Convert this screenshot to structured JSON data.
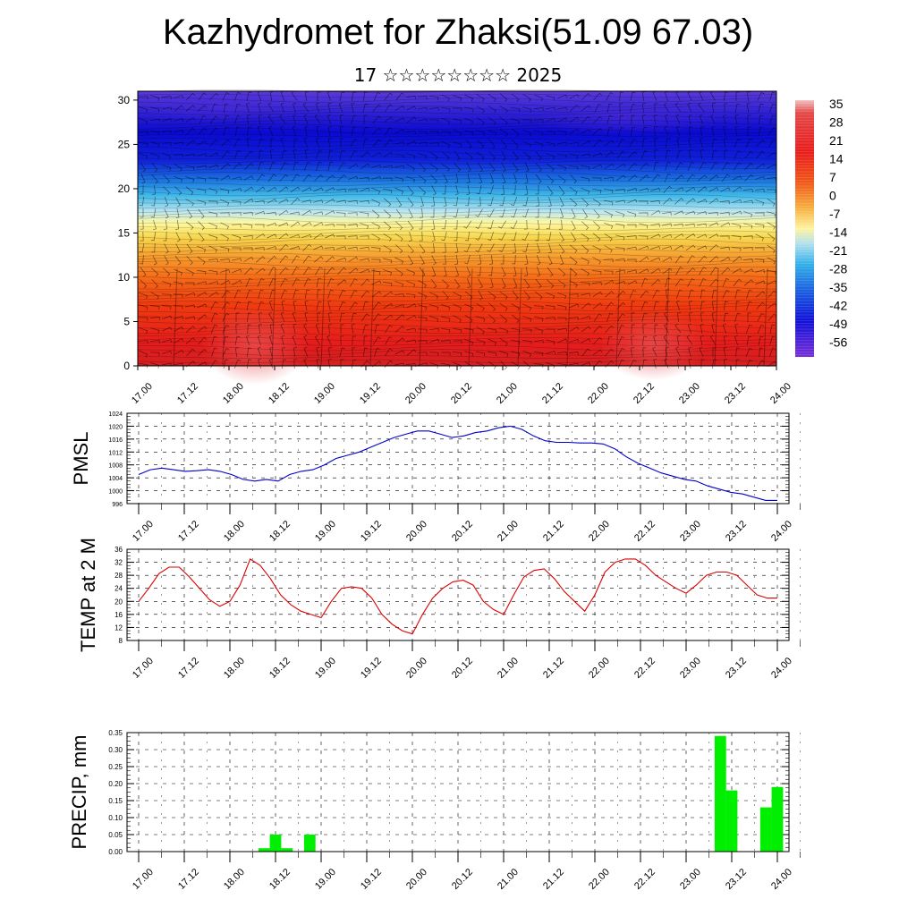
{
  "header": {
    "title": "Kazhydromet for Zhaksi(51.09 67.03)",
    "subtitle": "17 ☆☆☆☆☆☆☆☆ 2025"
  },
  "colors": {
    "pmsl_line": "#0000cc",
    "temp_line": "#dd0000",
    "precip_bar": "#00ee00"
  },
  "chart_data": [
    {
      "type": "heatmap",
      "title": "",
      "xlabel": "",
      "ylabel": "",
      "x_tick_labels": [
        "17.00",
        "17.12",
        "18.00",
        "18.12",
        "19.00",
        "19.12",
        "20.00",
        "20.12",
        "21.00",
        "21.12",
        "22.00",
        "22.12",
        "23.00",
        "23.12",
        "24.00"
      ],
      "y_ticks": [
        0,
        5,
        10,
        15,
        20,
        25,
        30
      ],
      "ylim": [
        0,
        31
      ],
      "colorbar_labels": [
        "35",
        "28",
        "21",
        "14",
        "7",
        "0",
        "-7",
        "-14",
        "-21",
        "-28",
        "-35",
        "-42",
        "-49",
        "-56"
      ],
      "colorbar_range": [
        -60,
        37
      ],
      "overlay": "wind barbs"
    },
    {
      "type": "line",
      "ylabel": "PMSL",
      "x_tick_labels": [
        "17.00",
        "17.12",
        "18.00",
        "18.12",
        "19.00",
        "19.12",
        "20.00",
        "20.12",
        "21.00",
        "21.12",
        "22.00",
        "22.12",
        "23.00",
        "23.12",
        "24.00"
      ],
      "y_ticks": [
        996,
        1000,
        1004,
        1008,
        1012,
        1016,
        1020,
        1024
      ],
      "ylim": [
        996,
        1024
      ],
      "grid": true,
      "series": [
        {
          "values": [
            1005,
            1006.5,
            1007,
            1006.5,
            1006,
            1006.2,
            1006.5,
            1006,
            1005,
            1003.5,
            1003,
            1003.5,
            1003,
            1005,
            1006,
            1006.5,
            1008,
            1010,
            1011,
            1012,
            1013.5,
            1015,
            1016.5,
            1017.5,
            1018.5,
            1018.5,
            1017.5,
            1016.5,
            1017,
            1018,
            1018.5,
            1019.5,
            1020,
            1019,
            1017,
            1015.5,
            1015,
            1015,
            1014.8,
            1014.8,
            1014.5,
            1013,
            1010.5,
            1008.5,
            1007,
            1005.5,
            1004.5,
            1003.5,
            1003,
            1001.5,
            1000.5,
            999.5,
            999,
            998,
            997,
            997
          ]
        }
      ]
    },
    {
      "type": "line",
      "ylabel": "TEMP at 2 M",
      "x_tick_labels": [
        "17.00",
        "17.12",
        "18.00",
        "18.12",
        "19.00",
        "19.12",
        "20.00",
        "20.12",
        "21.00",
        "21.12",
        "22.00",
        "22.12",
        "23.00",
        "23.12",
        "24.00"
      ],
      "y_ticks": [
        8,
        12,
        16,
        20,
        24,
        28,
        32,
        36
      ],
      "ylim": [
        8,
        36
      ],
      "grid": true,
      "series": [
        {
          "values": [
            20,
            24,
            28.5,
            30.5,
            30.5,
            27.5,
            24,
            20.5,
            18.5,
            20,
            25,
            33,
            31,
            27,
            22,
            19,
            17,
            16,
            15,
            20,
            24,
            24.5,
            24,
            21,
            16,
            13,
            11,
            10,
            16,
            21,
            24,
            26,
            26.5,
            25,
            20,
            17.5,
            16,
            22,
            27.5,
            29.5,
            30,
            27,
            23,
            20,
            17,
            22,
            29,
            32,
            33,
            33,
            31,
            28,
            26,
            24,
            22.5,
            25,
            28,
            29,
            29,
            28,
            25,
            22,
            21,
            21
          ]
        }
      ]
    },
    {
      "type": "bar",
      "ylabel": "PRECIP, mm",
      "x_tick_labels": [
        "17.00",
        "17.12",
        "18.00",
        "18.12",
        "19.00",
        "19.12",
        "20.00",
        "20.12",
        "21.00",
        "21.12",
        "22.00",
        "22.12",
        "23.00",
        "23.12",
        "24.00"
      ],
      "y_ticks": [
        "0.00",
        "0.05",
        "0.10",
        "0.15",
        "0.20",
        "0.25",
        "0.30",
        "0.35"
      ],
      "ylim": [
        0,
        0.35
      ],
      "grid": true,
      "series": [
        {
          "values": [
            0,
            0,
            0,
            0,
            0,
            0,
            0,
            0,
            0,
            0,
            0,
            0.01,
            0.05,
            0.01,
            0,
            0.05,
            0,
            0,
            0,
            0,
            0,
            0,
            0,
            0,
            0,
            0,
            0,
            0,
            0,
            0,
            0,
            0,
            0,
            0,
            0,
            0,
            0,
            0,
            0,
            0,
            0,
            0,
            0,
            0,
            0,
            0,
            0,
            0,
            0,
            0,
            0,
            0.34,
            0.18,
            0,
            0,
            0.13,
            0.19
          ]
        }
      ]
    }
  ]
}
